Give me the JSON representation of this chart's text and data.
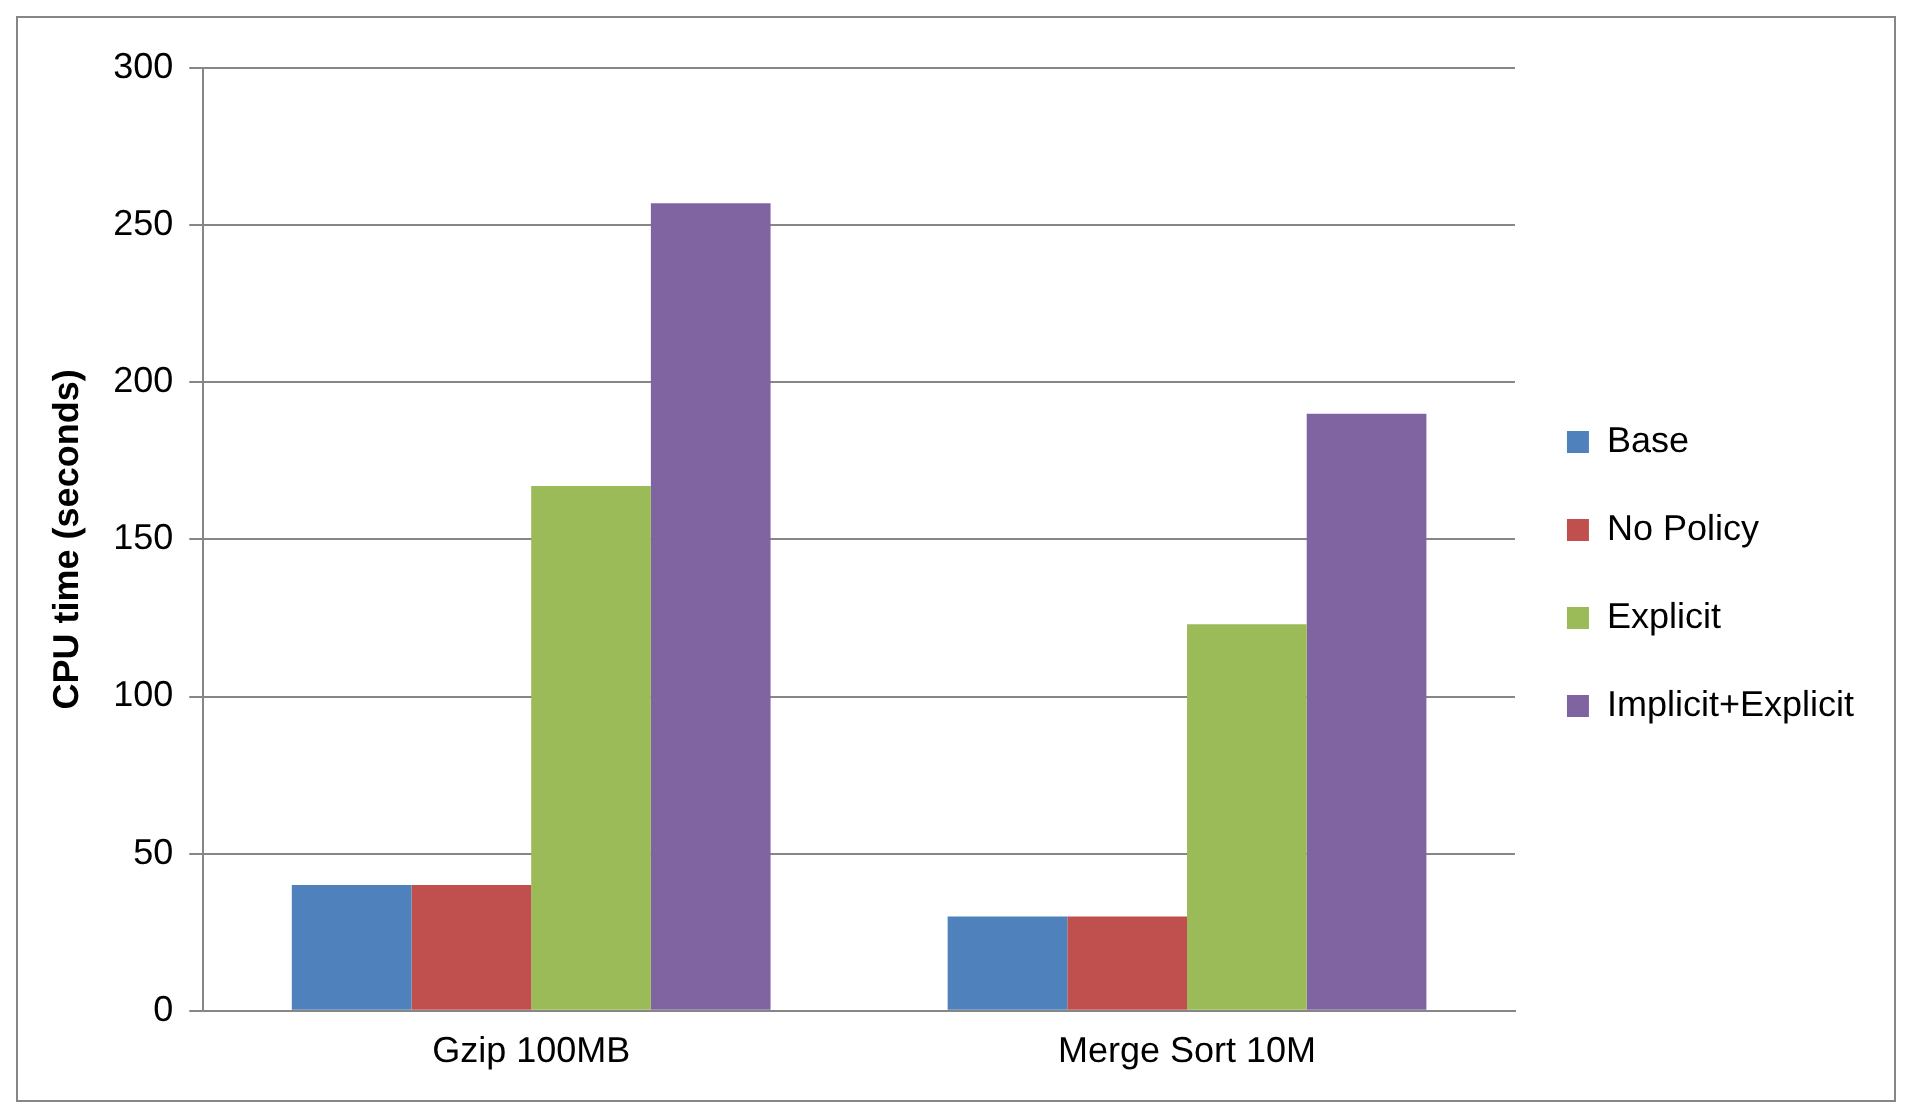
{
  "chart_data": {
    "type": "bar",
    "ylabel": "CPU time (seconds)",
    "categories": [
      "Gzip 100MB",
      "Merge Sort 10M"
    ],
    "series": [
      {
        "name": "Base",
        "color": "#4f81bd",
        "values": [
          40,
          30
        ]
      },
      {
        "name": "No Policy",
        "color": "#c0504d",
        "values": [
          40,
          30
        ]
      },
      {
        "name": "Explicit",
        "color": "#9bbb59",
        "values": [
          167,
          123
        ]
      },
      {
        "name": "Implicit+Explicit",
        "color": "#8064a2",
        "values": [
          257,
          190
        ]
      }
    ],
    "ylim": [
      0,
      300
    ],
    "yticks": [
      0,
      50,
      100,
      150,
      200,
      250,
      300
    ],
    "grid": "y",
    "legend": "right"
  }
}
